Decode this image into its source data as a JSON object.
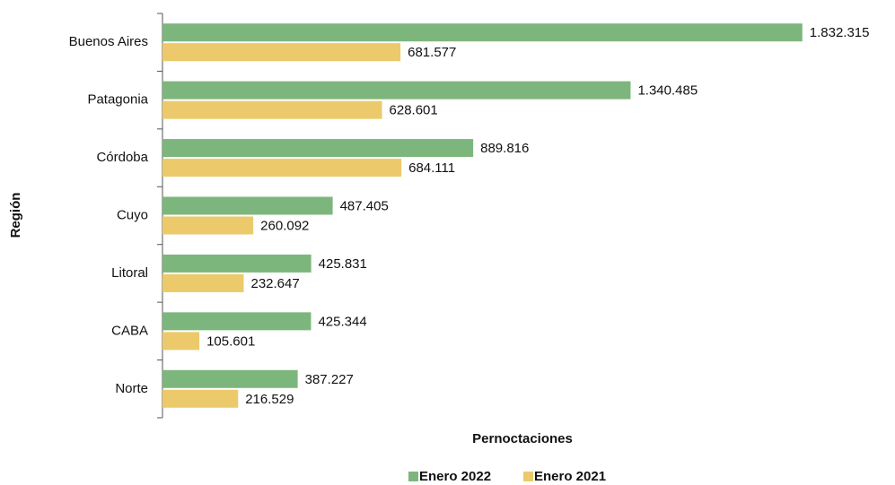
{
  "chart_data": {
    "type": "bar",
    "orientation": "horizontal",
    "x_label": "Pernoctaciones",
    "y_label": "Región",
    "categories": [
      "Buenos Aires",
      "Patagonia",
      "Córdoba",
      "Cuyo",
      "Litoral",
      "CABA",
      "Norte"
    ],
    "series": [
      {
        "name": "Enero 2022",
        "color": "#7db67d",
        "values": [
          1832315,
          1340485,
          889816,
          487405,
          425831,
          425344,
          387227
        ],
        "value_labels": [
          "1.832.315",
          "1.340.485",
          "889.816",
          "487.405",
          "425.831",
          "425.344",
          "387.227"
        ]
      },
      {
        "name": "Enero 2021",
        "color": "#ecc96a",
        "values": [
          681577,
          628601,
          684111,
          260092,
          232647,
          105601,
          216529
        ],
        "value_labels": [
          "681.577",
          "628.601",
          "684.111",
          "260.092",
          "232.647",
          "105.601",
          "216.529"
        ]
      }
    ],
    "xlim": [
      0,
      2000000
    ],
    "legend": "bottom"
  }
}
